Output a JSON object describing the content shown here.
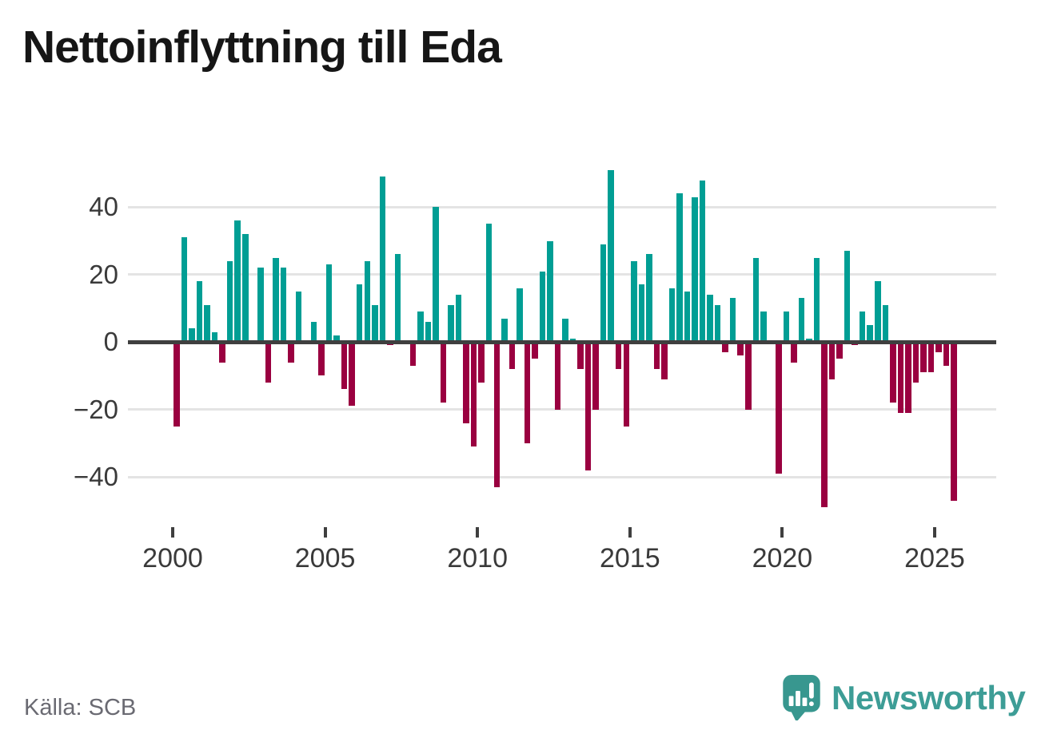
{
  "title": "Nettoinflyttning till Eda",
  "source": "Källa: SCB",
  "branding": {
    "name": "Newsworthy",
    "icon": "bar-chart-speech-bubble-icon",
    "color": "#3d9d96"
  },
  "colors": {
    "positive_bar": "#009e94",
    "negative_bar": "#9a0040",
    "axis_line": "#3f3f3f",
    "gridline": "#e4e4e4",
    "tick_text": "#3a3a3a",
    "source_text": "#6a6a72",
    "title_text": "#161616",
    "background": "#ffffff"
  },
  "chart_data": {
    "type": "bar",
    "title": "Nettoinflyttning till Eda",
    "unit": "quarter",
    "start_period": "2000 Q1",
    "end_period": "2025 Q3",
    "values": [
      -25,
      31,
      4,
      18,
      11,
      3,
      -6,
      24,
      36,
      32,
      0,
      22,
      -12,
      25,
      22,
      -6,
      15,
      0,
      6,
      -10,
      23,
      2,
      -14,
      -19,
      17,
      24,
      11,
      49,
      -1,
      26,
      0,
      -7,
      9,
      6,
      40,
      -18,
      11,
      14,
      -24,
      -31,
      -12,
      35,
      -43,
      7,
      -8,
      16,
      -30,
      -5,
      21,
      30,
      -20,
      7,
      1,
      -8,
      -38,
      -20,
      29,
      51,
      -8,
      -25,
      24,
      17,
      26,
      -8,
      -11,
      16,
      44,
      15,
      43,
      48,
      14,
      11,
      -3,
      13,
      -4,
      -20,
      25,
      9,
      0,
      -39,
      9,
      -6,
      13,
      1,
      25,
      -49,
      -11,
      -5,
      27,
      -1,
      9,
      5,
      18,
      11,
      -18,
      -21,
      -21,
      -12,
      -9,
      -9,
      -3,
      -7,
      -47
    ],
    "x_ticks": [
      {
        "label": "2000",
        "quarter_index": 0
      },
      {
        "label": "2005",
        "quarter_index": 20
      },
      {
        "label": "2010",
        "quarter_index": 40
      },
      {
        "label": "2015",
        "quarter_index": 60
      },
      {
        "label": "2020",
        "quarter_index": 80
      },
      {
        "label": "2025",
        "quarter_index": 100
      }
    ],
    "y_ticks": [
      {
        "label": "40",
        "value": 40
      },
      {
        "label": "20",
        "value": 20
      },
      {
        "label": "0",
        "value": 0
      },
      {
        "label": "−20",
        "value": -20
      },
      {
        "label": "−40",
        "value": -40
      }
    ],
    "ylim": [
      -53,
      55
    ],
    "grid": true,
    "legend": "none"
  }
}
